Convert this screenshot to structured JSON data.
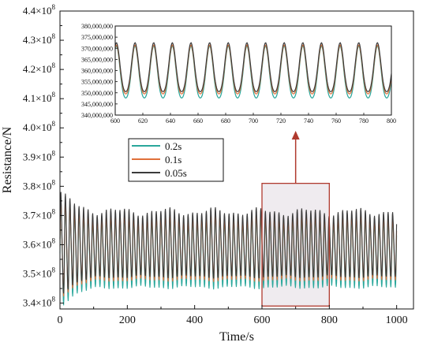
{
  "chart_data": [
    {
      "type": "line",
      "xlabel": "Time/s",
      "ylabel": "Resistance/N",
      "xlim": [
        0,
        1050
      ],
      "ylim": [
        338000000,
        440000000
      ],
      "x_ticks": [
        0,
        200,
        400,
        600,
        800,
        1000
      ],
      "x_tick_labels": [
        "0",
        "200",
        "400",
        "600",
        "800",
        "1000"
      ],
      "y_ticks": [
        340000000,
        350000000,
        360000000,
        370000000,
        380000000,
        390000000,
        400000000,
        410000000,
        420000000,
        430000000,
        440000000
      ],
      "y_tick_mantissas": [
        "3.4",
        "3.5",
        "3.6",
        "3.7",
        "3.8",
        "3.9",
        "4.0",
        "4.1",
        "4.2",
        "4.3",
        "4.4"
      ],
      "y_tick_multiplier": "×10",
      "y_tick_exponent": "8",
      "legend_placement": "center-left",
      "highlight_region": {
        "x": [
          600,
          800
        ],
        "y": [
          339000000,
          381000000
        ]
      },
      "period_s": 13.5,
      "series": [
        {
          "name": "0.2s",
          "color": "#2aa79b",
          "mean": 357000000,
          "amplitude": 13000000
        },
        {
          "name": "0.1s",
          "color": "#e0703a",
          "mean": 358500000,
          "amplitude": 12000000
        },
        {
          "name": "0.05s",
          "color": "#3b3b3b",
          "mean": 360000000,
          "amplitude": 12500000
        }
      ]
    },
    {
      "type": "line",
      "role": "inset",
      "xlim": [
        600,
        800
      ],
      "ylim": [
        340000000,
        380000000
      ],
      "x_ticks": [
        600,
        620,
        640,
        660,
        680,
        700,
        720,
        740,
        760,
        780,
        800
      ],
      "y_ticks": [
        340000000,
        345000000,
        350000000,
        355000000,
        360000000,
        365000000,
        370000000,
        375000000,
        380000000
      ],
      "y_tick_labels": [
        "340,000,000",
        "345,000,000",
        "350,000,000",
        "355,000,000",
        "360,000,000",
        "365,000,000",
        "370,000,000",
        "375,000,000",
        "380,000,000"
      ],
      "period_s": 13.5,
      "series": [
        {
          "name": "0.2s",
          "color": "#2aa79b",
          "peak": 371000000,
          "trough": 344500000
        },
        {
          "name": "0.1s",
          "color": "#e0703a",
          "peak": 371500000,
          "trough": 346500000
        },
        {
          "name": "0.05s",
          "color": "#3b3b3b",
          "peak": 372500000,
          "trough": 347500000
        }
      ]
    }
  ],
  "arrow_color": "#b03a2e",
  "highlight_fill": "#ece8ec"
}
